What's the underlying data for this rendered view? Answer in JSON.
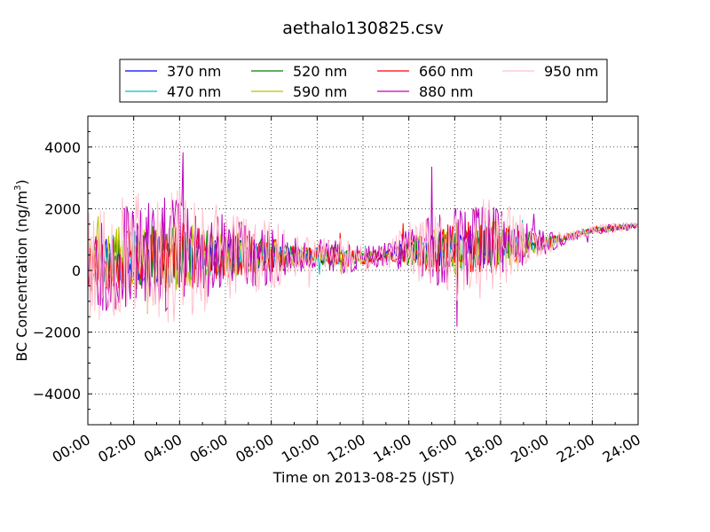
{
  "chart_data": {
    "type": "line",
    "title": "aethalo130825.csv",
    "xlabel": "Time on 2013-08-25 (JST)",
    "ylabel": "BC Concentration (ng/m",
    "ylabel_sup": "3",
    "ylabel_close": ")",
    "xlim": [
      0,
      24
    ],
    "ylim": [
      -5000,
      5000
    ],
    "x_ticks": [
      {
        "value": 0,
        "label": "00:00"
      },
      {
        "value": 2,
        "label": "02:00"
      },
      {
        "value": 4,
        "label": "04:00"
      },
      {
        "value": 6,
        "label": "06:00"
      },
      {
        "value": 8,
        "label": "08:00"
      },
      {
        "value": 10,
        "label": "10:00"
      },
      {
        "value": 12,
        "label": "12:00"
      },
      {
        "value": 14,
        "label": "14:00"
      },
      {
        "value": 16,
        "label": "16:00"
      },
      {
        "value": 18,
        "label": "18:00"
      },
      {
        "value": 20,
        "label": "20:00"
      },
      {
        "value": 22,
        "label": "22:00"
      },
      {
        "value": 24,
        "label": "24:00"
      }
    ],
    "y_ticks": [
      {
        "value": -4000,
        "label": "−4000"
      },
      {
        "value": -2000,
        "label": "−2000"
      },
      {
        "value": 0,
        "label": "0"
      },
      {
        "value": 2000,
        "label": "2000"
      },
      {
        "value": 4000,
        "label": "4000"
      }
    ],
    "grid": true,
    "legend_placement": "top, above plot",
    "series": [
      {
        "name": "370 nm",
        "color": "#0000ff",
        "amp": 700,
        "seed": 11
      },
      {
        "name": "470 nm",
        "color": "#00bfbf",
        "amp": 800,
        "seed": 23
      },
      {
        "name": "520 nm",
        "color": "#008000",
        "amp": 900,
        "seed": 37
      },
      {
        "name": "590 nm",
        "color": "#bfbf00",
        "amp": 1000,
        "seed": 41
      },
      {
        "name": "660 nm",
        "color": "#ff0000",
        "amp": 1000,
        "seed": 53
      },
      {
        "name": "880 nm",
        "color": "#bf00bf",
        "amp": 1600,
        "seed": 67
      },
      {
        "name": "950 nm",
        "color": "#ffc0cb",
        "amp": 1900,
        "seed": 79
      }
    ],
    "baseline": [
      [
        0,
        300
      ],
      [
        2,
        400
      ],
      [
        4,
        450
      ],
      [
        6,
        500
      ],
      [
        8,
        500
      ],
      [
        10,
        500
      ],
      [
        12,
        400
      ],
      [
        14,
        600
      ],
      [
        16,
        700
      ],
      [
        18,
        800
      ],
      [
        20,
        900
      ],
      [
        22,
        1300
      ],
      [
        24,
        1450
      ]
    ],
    "noise_envelope": [
      [
        0,
        1.0
      ],
      [
        4,
        1.2
      ],
      [
        6,
        0.8
      ],
      [
        8,
        0.6
      ],
      [
        9.5,
        0.3
      ],
      [
        10.5,
        0.4
      ],
      [
        11.5,
        0.3
      ],
      [
        13,
        0.2
      ],
      [
        14,
        0.5
      ],
      [
        16,
        0.9
      ],
      [
        18,
        0.8
      ],
      [
        19.5,
        0.3
      ],
      [
        21,
        0.1
      ],
      [
        24,
        0.08
      ]
    ]
  }
}
